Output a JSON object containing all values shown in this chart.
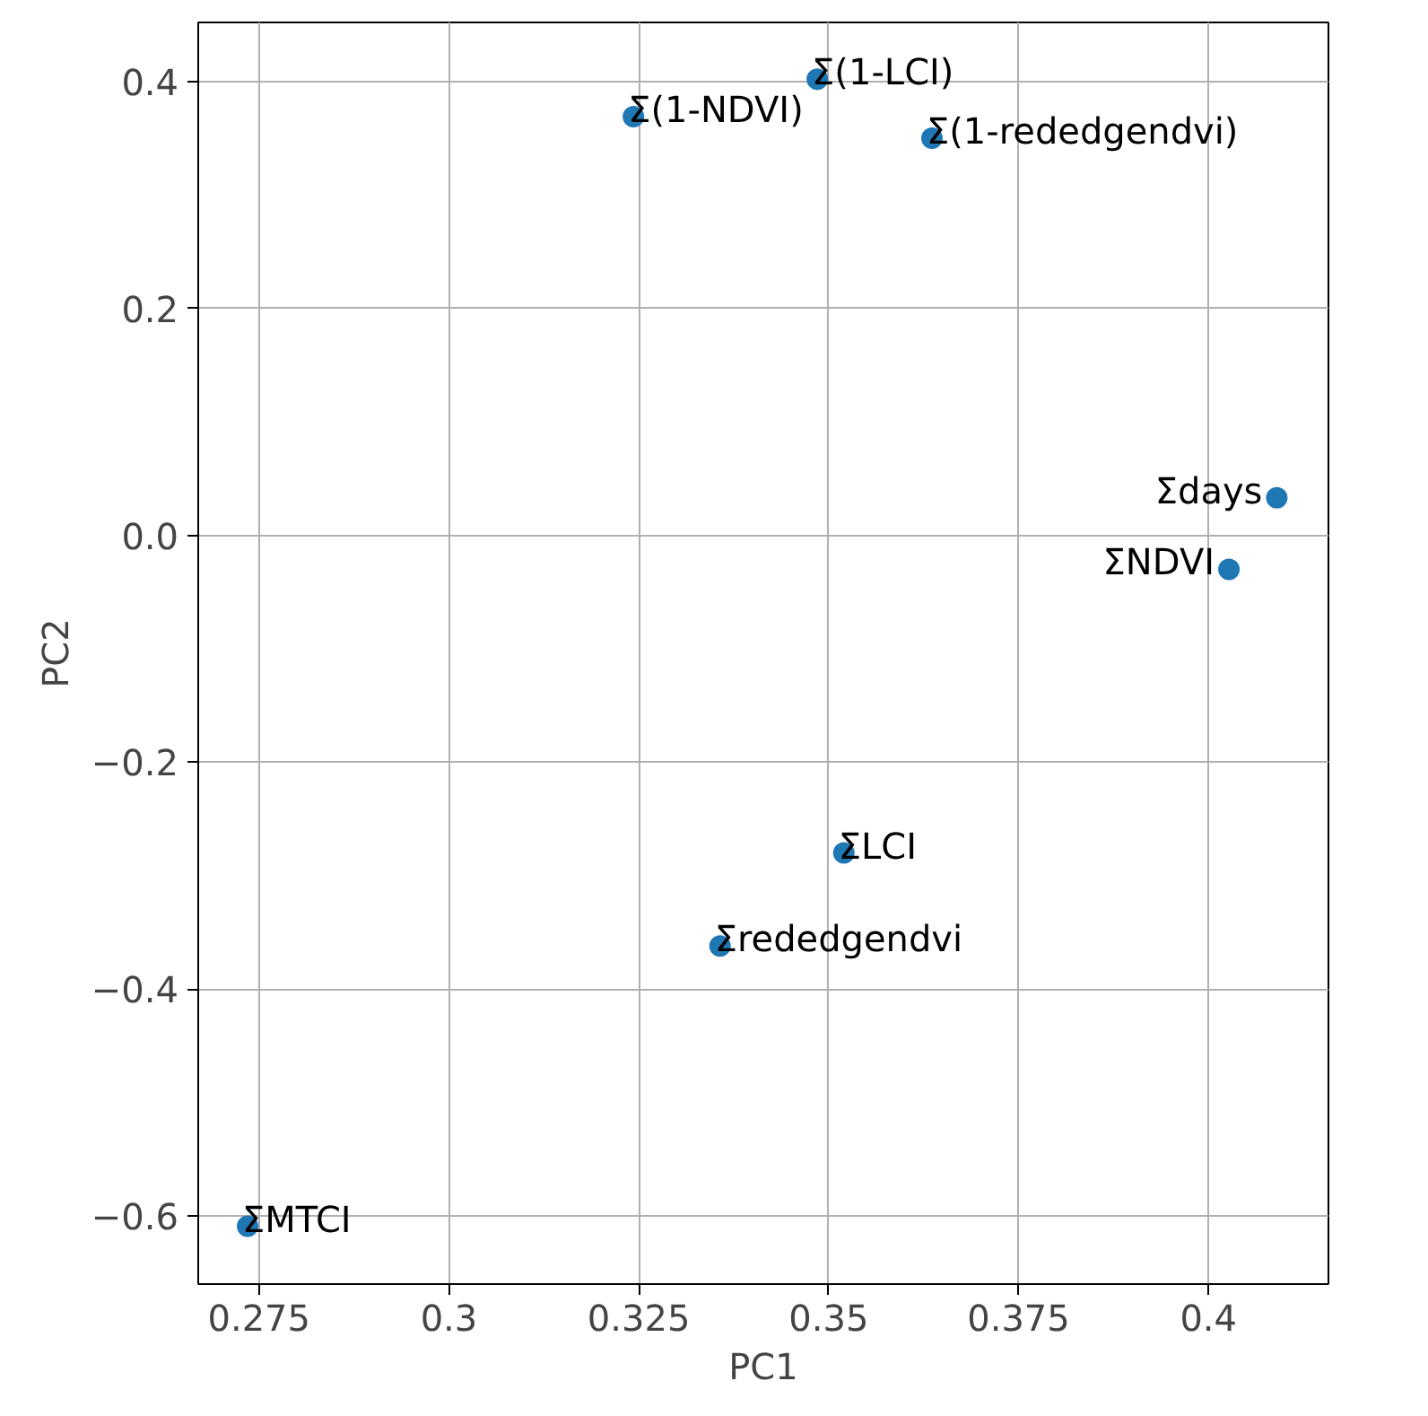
{
  "chart_data": {
    "type": "scatter",
    "xlabel": "PC1",
    "ylabel": "PC2",
    "x": [
      0.3243,
      0.3485,
      0.3636,
      0.409,
      0.4027,
      0.352,
      0.3357,
      0.2735
    ],
    "series": [
      {
        "color": "#1f77b4",
        "values": [
          0.369,
          0.402,
          0.35,
          0.033,
          -0.03,
          -0.28,
          -0.362,
          -0.609
        ]
      }
    ],
    "annotations": [
      {
        "text": "Σ(1-NDVI)",
        "x": 0.3243,
        "y": 0.369
      },
      {
        "text": "Σ(1-LCI)",
        "x": 0.3485,
        "y": 0.402
      },
      {
        "text": "Σ(1-rededgendvi)",
        "x": 0.3636,
        "y": 0.35
      },
      {
        "text": "Σdays",
        "x": 0.409,
        "y": 0.033
      },
      {
        "text": "ΣNDVI",
        "x": 0.4027,
        "y": -0.03
      },
      {
        "text": "ΣLCI",
        "x": 0.352,
        "y": -0.28
      },
      {
        "text": "Σrededgendvi",
        "x": 0.3357,
        "y": -0.362
      },
      {
        "text": "ΣMTCI",
        "x": 0.2735,
        "y": -0.609
      }
    ],
    "xlim": [
      0.267,
      0.4158
    ],
    "ylim": [
      -0.66,
      0.452
    ],
    "xticks": [
      0.275,
      0.3,
      0.325,
      0.35,
      0.375,
      0.4
    ],
    "yticks": [
      {
        "value": -0.6,
        "label": "−0.6"
      },
      {
        "value": -0.4,
        "label": "−0.4"
      },
      {
        "value": -0.2,
        "label": "−0.2"
      },
      {
        "value": 0,
        "label": "0.0"
      },
      {
        "value": 0.2,
        "label": "0.2"
      },
      {
        "value": 0.4,
        "label": "0.4"
      }
    ],
    "grid": true,
    "marker": "circle"
  }
}
